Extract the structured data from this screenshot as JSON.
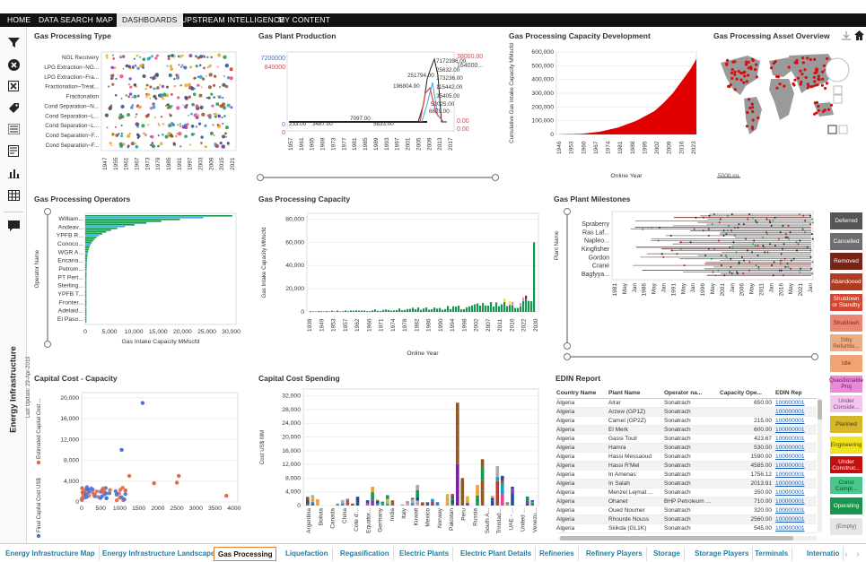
{
  "topnav": {
    "items": [
      "HOME",
      "DATA SEARCH",
      "MAP",
      "DASHBOARDS",
      "UPSTREAM INTELLIGENCE",
      "MY CONTENT"
    ],
    "active": "DASHBOARDS"
  },
  "rail": {
    "icons": [
      "filter-icon",
      "clear-icon",
      "close-box-icon",
      "tag-icon",
      "list-icon",
      "document-icon",
      "bar-chart-icon",
      "table-icon",
      "comment-icon"
    ],
    "title": "Energy Infrastructure",
    "updated": "Last Update: 29-Apr-2019"
  },
  "panels": {
    "gas_processing_type": {
      "title": "Gas Processing Type"
    },
    "gas_plant_production": {
      "title": "Gas Plant Production"
    },
    "capacity_development": {
      "title": "Gas Processing Capacity Development"
    },
    "asset_overview": {
      "title": "Gas Processing Asset Overview",
      "scale": "5000 mi"
    },
    "operators": {
      "title": "Gas Processing Operators"
    },
    "capacity": {
      "title": "Gas Processing Capacity"
    },
    "milestones": {
      "title": "Gas Plant Milestones"
    },
    "capital_capacity": {
      "title": "Capital Cost - Capacity"
    },
    "capital_spending": {
      "title": "Capital Cost Spending"
    },
    "edin": {
      "title": "EDIN Report"
    }
  },
  "chart_data": [
    {
      "type": "scatter",
      "title": "Gas Processing Type",
      "categories": [
        "NGL Recovery",
        "LPG Extraction~NG...",
        "LPG Extraction~Fra...",
        "Fractionation~Treat...",
        "Fractionation",
        "Cond Separation~N...",
        "Cond Separation~L...",
        "Cond Separation~L...",
        "Cond Separation~F...",
        "Cond Separation~F..."
      ],
      "x_ticks": [
        "1947",
        "1955",
        "1961",
        "1967",
        "1973",
        "1979",
        "1985",
        "1991",
        "1997",
        "2003",
        "2009",
        "2015",
        "2021"
      ]
    },
    {
      "type": "line",
      "title": "Gas Plant Production",
      "x_ticks": [
        "1957",
        "1961",
        "1965",
        "1969",
        "1973",
        "1977",
        "1981",
        "1985",
        "1989",
        "1993",
        "1997",
        "2001",
        "2005",
        "2009",
        "2013",
        "2017"
      ],
      "left_axis": [
        "7200000",
        "840000",
        "0",
        "0"
      ],
      "right_axis": [
        "38000.00",
        "164000...",
        "0.00",
        "0.00"
      ],
      "labels": [
        "233.00",
        "3487.00",
        "7097.00",
        "5833.00",
        "196804.00",
        "251794.00",
        "7172396.00",
        "25632.00",
        "173236.00",
        "115442.00",
        "35405.00",
        "52025.00",
        "6679.00"
      ]
    },
    {
      "type": "area",
      "title": "Gas Processing Capacity Development",
      "ylabel": "Cumulative Gas Intake Capacity MMscfd",
      "xlabel": "Online Year",
      "y_ticks": [
        "0",
        "100,000",
        "200,000",
        "300,000",
        "400,000",
        "500,000",
        "600,000"
      ],
      "x_ticks": [
        "1946",
        "1953",
        "1960",
        "1967",
        "1974",
        "1981",
        "1988",
        "1995",
        "2002",
        "2009",
        "2016",
        "2023"
      ],
      "x": [
        1946,
        1960,
        1970,
        1980,
        1990,
        2000,
        2005,
        2010,
        2015,
        2020,
        2023
      ],
      "y": [
        0,
        5000,
        20000,
        50000,
        100000,
        170000,
        230000,
        300000,
        390000,
        480000,
        550000
      ],
      "ylim": [
        0,
        600000
      ]
    },
    {
      "type": "bar",
      "title": "Gas Processing Operators",
      "ylabel": "Operator Name",
      "xlabel": "Gas Intake Capacity MMscfd",
      "categories": [
        "William...",
        "Andeav...",
        "YPFB R...",
        "Conoco...",
        "WGR A...",
        "Encana...",
        "Petrom...",
        "PT Pert...",
        "Sterling...",
        "YPFB T...",
        "Fronter...",
        "Adelaid...",
        "El Paso..."
      ],
      "x_ticks": [
        "0",
        "5,000",
        "10,000",
        "15,000",
        "20,000",
        "25,000",
        "30,000"
      ],
      "xlim": [
        0,
        31000
      ]
    },
    {
      "type": "bar",
      "title": "Gas Processing Capacity",
      "ylabel": "Gas Intake Capacity MMscfd",
      "xlabel": "Online Year",
      "y_ticks": [
        "0",
        "20,000",
        "40,000",
        "60,000",
        "80,000"
      ],
      "x_ticks": [
        "1939",
        "1949",
        "1953",
        "1957",
        "1962",
        "1966",
        "1971",
        "1974",
        "1978",
        "1982",
        "1986",
        "1990",
        "1994",
        "1998",
        "2002",
        "2007",
        "2011",
        "2016",
        "2022",
        "2030"
      ],
      "ylim": [
        0,
        85000
      ]
    },
    {
      "type": "scatter",
      "title": "Gas Plant Milestones",
      "ylabel": "Plant Name",
      "categories": [
        "Spraberry",
        "Ras Laf...",
        "Napleo...",
        "Kingfisher",
        "Gordon",
        "Crane",
        "Bagfyya..."
      ],
      "x_ticks": [
        "1981",
        "May",
        "Jan",
        "1986",
        "May",
        "Jan",
        "1991",
        "May",
        "Jan",
        "1996",
        "May",
        "2001",
        "Jan",
        "2006",
        "May",
        "2011",
        "Jan",
        "2016",
        "May",
        "2021",
        "Jan"
      ]
    },
    {
      "type": "scatter",
      "title": "Capital Cost - Capacity",
      "series": [
        {
          "name": "Estimated Capital Cost ..."
        },
        {
          "name": "Final Capital Cost US$"
        }
      ],
      "y_ticks": [
        "0",
        "4,000",
        "8,000",
        "12,000",
        "16,000",
        "20,000"
      ],
      "x_ticks": [
        "0",
        "500",
        "1000",
        "1500",
        "2000",
        "2500",
        "3000",
        "3500",
        "4000"
      ],
      "xlim": [
        0,
        4100
      ],
      "ylim": [
        0,
        21000
      ]
    },
    {
      "type": "bar",
      "title": "Capital Cost Spending",
      "ylabel": "Cost US$ MM",
      "y_ticks": [
        "0",
        "4,000",
        "8,000",
        "12,000",
        "16,000",
        "20,000",
        "24,000",
        "28,000",
        "32,000"
      ],
      "categories": [
        "Argentina",
        "Bolivia",
        "Canada",
        "China",
        "Cote d'...",
        "Equator...",
        "Germany",
        "India",
        "Italy",
        "Kuwait",
        "Mexico",
        "Norway",
        "Pakistan",
        "Peru",
        "Russia",
        "South A...",
        "Trinidad...",
        "UAE - ...",
        "United ...",
        "Venezu..."
      ],
      "ylim": [
        0,
        34000
      ]
    }
  ],
  "legend": [
    {
      "label": "Deferred",
      "color": "#555555",
      "text": "#ffffff"
    },
    {
      "label": "Cancelled",
      "color": "#6e6e6e",
      "text": "#ffffff"
    },
    {
      "label": "Removed",
      "color": "#7a2418",
      "text": "#ffffff"
    },
    {
      "label": "Abandoned",
      "color": "#b03a22",
      "text": "#ffffff"
    },
    {
      "label": "Shutdown or Standby",
      "color": "#d8452e",
      "text": "#ffffff"
    },
    {
      "label": "Shutdown",
      "color": "#e98570",
      "text": "#7a2a20"
    },
    {
      "label": "Stby Refurbis...",
      "color": "#ecac84",
      "text": "#8a4b2a"
    },
    {
      "label": "Idle",
      "color": "#f2a373",
      "text": "#7a3a15"
    },
    {
      "label": "Questionable Proj",
      "color": "#e88ad8",
      "text": "#6a1a60"
    },
    {
      "label": "Under Conside...",
      "color": "#f3c6ee",
      "text": "#7a3a74"
    },
    {
      "label": "Planned",
      "color": "#d8b62a",
      "text": "#4a3a00"
    },
    {
      "label": "Engineering",
      "color": "#f0e21c",
      "text": "#4a4300"
    },
    {
      "label": "Under Construc...",
      "color": "#c40f0f",
      "text": "#ffffff"
    },
    {
      "label": "Const Compl...",
      "color": "#48c78a",
      "text": "#0e4a2e"
    },
    {
      "label": "Operating",
      "color": "#16964e",
      "text": "#ffffff"
    },
    {
      "label": "(Empty)",
      "color": "#e6e6e6",
      "text": "#666666"
    }
  ],
  "edin": {
    "columns": [
      "Country Name",
      "Plant Name",
      "Operator na...",
      "Capacity Ope...",
      "EDIN Rep"
    ],
    "rows": [
      [
        "Algeria",
        "Alrar",
        "Sonatrach",
        "650.00",
        "100000001"
      ],
      [
        "Algeria",
        "Arzew (GP1Z)",
        "Sonatrach",
        "",
        "100000001"
      ],
      [
        "Algeria",
        "Camel (GP2Z)",
        "Sonatrach",
        "215.00",
        "100000001"
      ],
      [
        "Algeria",
        "El Merk",
        "Sonatrach",
        "600.00",
        "100000001"
      ],
      [
        "Algeria",
        "Gassi Touil",
        "Sonatrach",
        "423.67",
        "100000001"
      ],
      [
        "Algeria",
        "Hamra",
        "Sonatrach",
        "530.00",
        "100000001"
      ],
      [
        "Algeria",
        "Hassi Messaoud",
        "Sonatrach",
        "1590.00",
        "100000001"
      ],
      [
        "Algeria",
        "Hassi R'Mel",
        "Sonatrach",
        "4585.00",
        "100000001"
      ],
      [
        "Algeria",
        "In Amenas",
        "Sonatrach",
        "1756.12",
        "100000001"
      ],
      [
        "Algeria",
        "In Salah",
        "Sonatrach",
        "2013.91",
        "100000001"
      ],
      [
        "Algeria",
        "Menzel Lejmat ...",
        "Sonatrach",
        "350.00",
        "100000001"
      ],
      [
        "Algeria",
        "Ohanet",
        "BHP Petroleum ...",
        "710.00",
        "100000001"
      ],
      [
        "Algeria",
        "Oued Noumer",
        "Sonatrach",
        "320.00",
        "100000001"
      ],
      [
        "Algeria",
        "Rhourde Nouss",
        "Sonatrach",
        "2560.00",
        "100000001"
      ],
      [
        "Algeria",
        "Skikda (GL1K)",
        "Sonatrach",
        "545.00",
        "100000001"
      ]
    ]
  },
  "bottom_tabs": [
    "Energy Infrastructure Map",
    "Energy Infrastructure Landscape",
    "Gas Processing",
    "Liquefaction",
    "Regasification",
    "Electric Plants",
    "Electric Plant Details",
    "Refineries",
    "Refinery Players",
    "Storage",
    "Storage Players",
    "Terminals",
    "Internatio"
  ],
  "bottom_active": "Gas Processing"
}
